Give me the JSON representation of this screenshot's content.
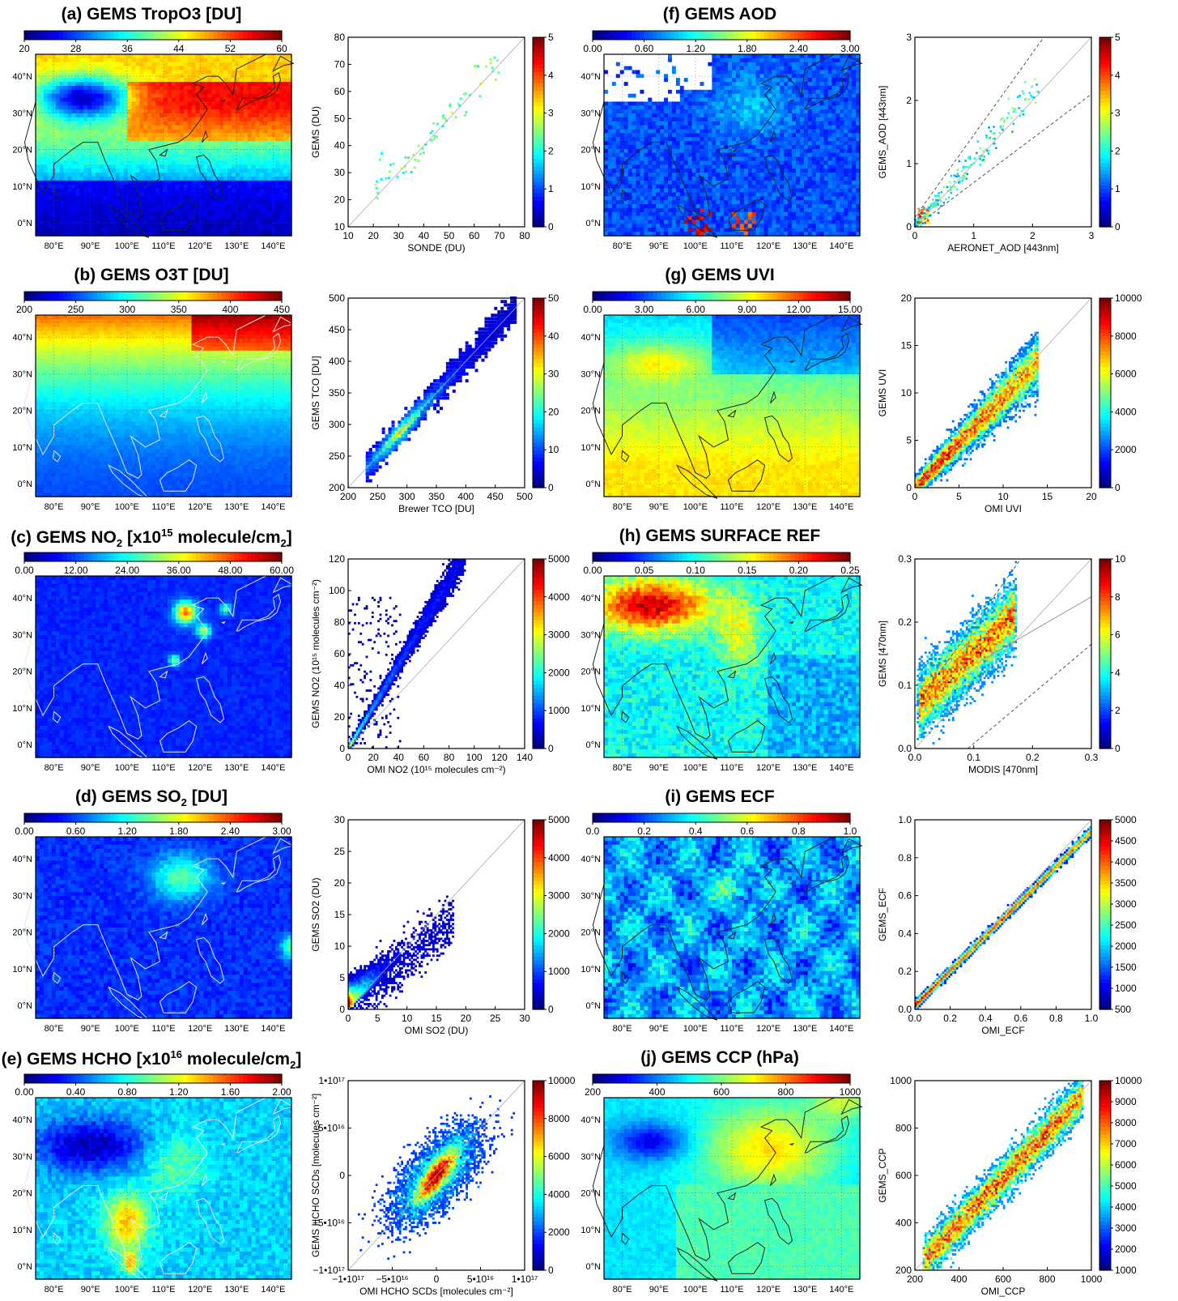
{
  "colors": {
    "jet": [
      "#00007f",
      "#0000ff",
      "#007fff",
      "#00ffff",
      "#7fff7f",
      "#ffff00",
      "#ff7f00",
      "#ff0000",
      "#7f0000"
    ],
    "frame": "#000000",
    "grid": "#bbbbbb",
    "coast_dark": "#222222",
    "coast_light": "#e6e6e6"
  },
  "map_axes": {
    "lon_labels": [
      "80°E",
      "90°E",
      "100°E",
      "110°E",
      "120°E",
      "130°E",
      "140°E"
    ],
    "lat_labels": [
      "40°N",
      "30°N",
      "20°N",
      "10°N",
      "0°N"
    ]
  },
  "panels": [
    {
      "id": "a",
      "title_parts": [
        "(a) GEMS TropO3 [DU]"
      ],
      "colorbar": [
        "20",
        "28",
        "36",
        "44",
        "52",
        "60"
      ],
      "style": "tropo3",
      "coast": "dark",
      "scatter": {
        "kind": "points",
        "xlabel": "SONDE (DU)",
        "ylabel": "GEMS (DU)",
        "xticks": [
          "10",
          "20",
          "30",
          "40",
          "50",
          "60",
          "70",
          "80"
        ],
        "yticks": [
          "10",
          "20",
          "30",
          "40",
          "50",
          "60",
          "70",
          "80"
        ],
        "xr": [
          10,
          80
        ],
        "yr": [
          10,
          80
        ],
        "cbar": [
          "0",
          "1",
          "2",
          "3",
          "4",
          "5"
        ],
        "seed": 11
      }
    },
    {
      "id": "b",
      "title_parts": [
        "(b) GEMS O3T [DU]"
      ],
      "colorbar": [
        "200",
        "250",
        "300",
        "350",
        "400",
        "450"
      ],
      "style": "o3t",
      "coast": "light",
      "scatter": {
        "kind": "density_sparse",
        "xlabel": "Brewer TCO [DU]",
        "ylabel": "GEMS TCO [DU]",
        "xticks": [
          "200",
          "250",
          "300",
          "350",
          "400",
          "450",
          "500"
        ],
        "yticks": [
          "200",
          "250",
          "300",
          "350",
          "400",
          "450",
          "500"
        ],
        "xr": [
          200,
          500
        ],
        "yr": [
          200,
          500
        ],
        "cbar": [
          "0",
          "10",
          "20",
          "30",
          "40",
          "50"
        ],
        "seed": 22
      }
    },
    {
      "id": "c",
      "title_parts": [
        "(c) GEMS NO",
        "2",
        " [x10",
        "15",
        " molecule/cm",
        "2",
        "]"
      ],
      "colorbar": [
        "0.00",
        "12.00",
        "24.00",
        "36.00",
        "48.00",
        "60.00"
      ],
      "style": "no2",
      "coast": "light",
      "scatter": {
        "kind": "density_line",
        "slope": 1.55,
        "xlabel": "OMI NO2 (10¹⁵ molecules cm⁻²)",
        "ylabel": "GEMS NO2 (10¹⁵ molecules cm⁻²)",
        "xticks": [
          "0",
          "20",
          "40",
          "60",
          "80",
          "100",
          "120",
          "140"
        ],
        "yticks": [
          "0",
          "20",
          "40",
          "60",
          "80",
          "100",
          "120"
        ],
        "xr": [
          0,
          140
        ],
        "yr": [
          0,
          140
        ],
        "cbar": [
          "0",
          "1000",
          "2000",
          "3000",
          "4000",
          "5000"
        ],
        "seed": 33
      }
    },
    {
      "id": "d",
      "title_parts": [
        "(d) GEMS SO",
        "2",
        " [DU]"
      ],
      "colorbar": [
        "0.00",
        "0.60",
        "1.20",
        "1.80",
        "2.40",
        "3.00"
      ],
      "style": "so2",
      "coast": "light",
      "scatter": {
        "kind": "density_blob",
        "xlabel": "OMI SO2 (DU)",
        "ylabel": "GEMS SO2 (DU)",
        "xticks": [
          "0",
          "5",
          "10",
          "15",
          "20",
          "25",
          "30"
        ],
        "yticks": [
          "0",
          "5",
          "10",
          "15",
          "20",
          "25",
          "30"
        ],
        "xr": [
          0,
          30
        ],
        "yr": [
          0,
          30
        ],
        "cbar": [
          "0",
          "1000",
          "2000",
          "3000",
          "4000",
          "5000"
        ],
        "seed": 44
      }
    },
    {
      "id": "e",
      "title_parts": [
        "(e) GEMS HCHO [x10",
        "16",
        " molecule/cm",
        "2",
        "]"
      ],
      "colorbar": [
        "0.00",
        "0.40",
        "0.80",
        "1.20",
        "1.60",
        "2.00"
      ],
      "style": "hcho",
      "coast": "light",
      "scatter": {
        "kind": "density_ellipse",
        "xlabel": "OMI HCHO SCDs [molecules cm⁻²]",
        "ylabel": "GEMS HCHO SCDs [molecules cm⁻²]",
        "xticks": [
          "−1•10¹⁷",
          "−5•10¹⁶",
          "0",
          "5•10¹⁶",
          "1•10¹⁷"
        ],
        "yticks": [
          "−1•10¹⁷",
          "−5•10¹⁶",
          "0",
          "5•10¹⁶",
          "1•10¹⁷"
        ],
        "xr": [
          -1,
          1
        ],
        "yr": [
          -1,
          1
        ],
        "cbar": [
          "0",
          "2000",
          "4000",
          "6000",
          "8000",
          "10000"
        ],
        "seed": 55
      }
    },
    {
      "id": "f",
      "title_parts": [
        "(f) GEMS AOD"
      ],
      "colorbar": [
        "0.00",
        "0.60",
        "1.20",
        "1.80",
        "2.40",
        "3.00"
      ],
      "style": "aod",
      "coast": "dark",
      "scatter": {
        "kind": "points_aod",
        "xlabel": "AERONET_AOD [443nm]",
        "ylabel": "GEMS_AOD [443nm]",
        "xticks": [
          "0",
          "1",
          "2",
          "3"
        ],
        "yticks": [
          "0",
          "1",
          "2",
          "3"
        ],
        "xr": [
          0,
          3
        ],
        "yr": [
          0,
          3
        ],
        "cbar": [
          "0",
          "1",
          "2",
          "3",
          "4",
          "5"
        ],
        "seed": 66
      }
    },
    {
      "id": "g",
      "title_parts": [
        "(g) GEMS UVI"
      ],
      "colorbar": [
        "0.00",
        "3.00",
        "6.00",
        "9.00",
        "12.00",
        "15.00"
      ],
      "style": "uvi",
      "coast": "dark",
      "scatter": {
        "kind": "density_line_wide",
        "xlabel": "OMI UVI",
        "ylabel": "GEMS UVI",
        "xticks": [
          "0",
          "5",
          "10",
          "15",
          "20"
        ],
        "yticks": [
          "0",
          "5",
          "10",
          "15",
          "20"
        ],
        "xr": [
          0,
          20
        ],
        "yr": [
          0,
          20
        ],
        "cbar": [
          "0",
          "2000",
          "4000",
          "6000",
          "8000",
          "10000"
        ],
        "seed": 77
      }
    },
    {
      "id": "h",
      "title_parts": [
        "(h) GEMS SURFACE REF"
      ],
      "colorbar": [
        "0.00",
        "0.05",
        "0.10",
        "0.15",
        "0.20",
        "0.25"
      ],
      "style": "sref",
      "coast": "dark",
      "scatter": {
        "kind": "density_block",
        "xlabel": "MODIS [470nm]",
        "ylabel": "GEMS [470nm]",
        "xticks": [
          "0.0",
          "0.1",
          "0.2",
          "0.3"
        ],
        "yticks": [
          "0.0",
          "0.1",
          "0.2",
          "0.3"
        ],
        "xr": [
          0,
          0.3
        ],
        "yr": [
          0,
          0.3
        ],
        "cbar": [
          "0",
          "2",
          "4",
          "6",
          "8",
          "10"
        ],
        "seed": 88
      }
    },
    {
      "id": "i",
      "title_parts": [
        "(i) GEMS ECF"
      ],
      "colorbar": [
        "0.0",
        "0.2",
        "0.4",
        "0.6",
        "0.8",
        "1.0"
      ],
      "style": "ecf",
      "coast": "dark",
      "scatter": {
        "kind": "density_thin",
        "xlabel": "OMI_ECF",
        "ylabel": "GEMS_ECF",
        "xticks": [
          "0.0",
          "0.2",
          "0.4",
          "0.6",
          "0.8",
          "1.0"
        ],
        "yticks": [
          "0.0",
          "0.2",
          "0.4",
          "0.6",
          "0.8",
          "1.0"
        ],
        "xr": [
          0,
          1
        ],
        "yr": [
          0,
          1
        ],
        "cbar": [
          "500",
          "1000",
          "1500",
          "2000",
          "2500",
          "3000",
          "3500",
          "4000",
          "4500",
          "5000"
        ],
        "seed": 99
      }
    },
    {
      "id": "j",
      "title_parts": [
        "(j) GEMS CCP (hPa)"
      ],
      "colorbar": [
        "200",
        "400",
        "600",
        "800",
        "1000"
      ],
      "style": "ccp",
      "coast": "dark",
      "scatter": {
        "kind": "density_ccp",
        "xlabel": "OMI_CCP",
        "ylabel": "GEMS_CCP",
        "xticks": [
          "200",
          "400",
          "600",
          "800",
          "1000"
        ],
        "yticks": [
          "200",
          "400",
          "600",
          "800",
          "1000"
        ],
        "xr": [
          200,
          1000
        ],
        "yr": [
          200,
          1000
        ],
        "cbar": [
          "1000",
          "2000",
          "3000",
          "4000",
          "5000",
          "6000",
          "7000",
          "8000",
          "9000",
          "10000"
        ],
        "seed": 111
      }
    }
  ]
}
